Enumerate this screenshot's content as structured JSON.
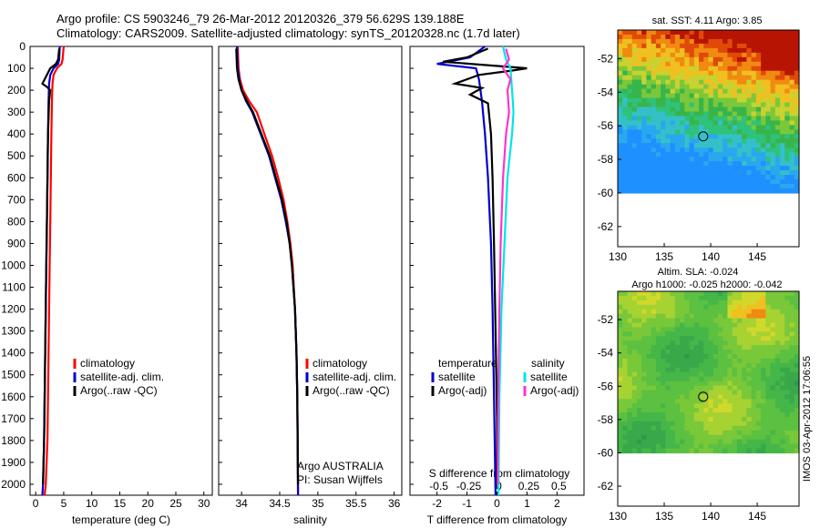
{
  "header": {
    "line1": "Argo profile: CS 5903246_79 26-Mar-2012 20120326_379 56.629S 139.188E",
    "line2": "Climatology: CARS2009. Satellite-adjusted climatology: synTS_20120328.nc (1.7d later)"
  },
  "colors": {
    "clim": "#ff0000",
    "sat": "#0000cc",
    "argo": "#000000",
    "cyan": "#00e5e5",
    "magenta": "#ff33cc"
  },
  "chart_data": [
    {
      "id": "temperature",
      "type": "line",
      "xlabel": "temperature (deg C)",
      "ylim": [
        2050,
        0
      ],
      "xlim": [
        -1,
        31.5
      ],
      "xticks": [
        0,
        5,
        10,
        15,
        20,
        25,
        30
      ],
      "yticks": [
        0,
        100,
        200,
        300,
        400,
        500,
        600,
        700,
        800,
        900,
        1000,
        1100,
        1200,
        1300,
        1400,
        1500,
        1600,
        1700,
        1800,
        1900,
        2000
      ],
      "legend": [
        "climatology",
        "satellite-adj. clim.",
        "Argo(..raw -QC)"
      ],
      "series": [
        {
          "name": "climatology",
          "color": "clim",
          "points": [
            [
              5.0,
              0
            ],
            [
              4.8,
              60
            ],
            [
              4.6,
              80
            ],
            [
              3.8,
              100
            ],
            [
              3.2,
              130
            ],
            [
              3.0,
              170
            ],
            [
              2.9,
              250
            ],
            [
              2.8,
              400
            ],
            [
              2.7,
              600
            ],
            [
              2.6,
              800
            ],
            [
              2.5,
              1000
            ],
            [
              2.4,
              1200
            ],
            [
              2.3,
              1400
            ],
            [
              2.2,
              1600
            ],
            [
              2.1,
              1800
            ],
            [
              1.8,
              2000
            ],
            [
              1.6,
              2050
            ]
          ]
        },
        {
          "name": "satellite-adj. clim.",
          "color": "sat",
          "points": [
            [
              4.3,
              0
            ],
            [
              4.2,
              60
            ],
            [
              4.0,
              80
            ],
            [
              3.2,
              100
            ],
            [
              2.6,
              130
            ],
            [
              2.4,
              170
            ],
            [
              2.3,
              250
            ],
            [
              2.2,
              400
            ],
            [
              2.1,
              600
            ],
            [
              2.0,
              800
            ],
            [
              1.9,
              1000
            ],
            [
              1.8,
              1200
            ],
            [
              1.7,
              1400
            ],
            [
              1.6,
              1600
            ],
            [
              1.5,
              1800
            ],
            [
              1.3,
              2000
            ],
            [
              1.2,
              2050
            ]
          ]
        },
        {
          "name": "Argo(..raw -QC)",
          "color": "argo",
          "points": [
            [
              4.2,
              10
            ],
            [
              4.0,
              60
            ],
            [
              3.6,
              80
            ],
            [
              2.6,
              100
            ],
            [
              1.6,
              150
            ],
            [
              1.2,
              170
            ],
            [
              2.0,
              185
            ],
            [
              2.6,
              200
            ],
            [
              2.4,
              250
            ],
            [
              2.2,
              400
            ],
            [
              2.1,
              600
            ],
            [
              2.0,
              800
            ],
            [
              1.9,
              1000
            ],
            [
              1.8,
              1200
            ],
            [
              1.7,
              1400
            ],
            [
              1.6,
              1600
            ],
            [
              1.5,
              1800
            ],
            [
              1.3,
              2000
            ]
          ]
        }
      ]
    },
    {
      "id": "salinity",
      "type": "line",
      "xlabel": "salinity",
      "ylim": [
        2050,
        0
      ],
      "xlim": [
        33.7,
        36.1
      ],
      "xticks": [
        34,
        34.5,
        35,
        35.5,
        36
      ],
      "xtick_labels": [
        "34",
        "34.5",
        "35",
        "35.5",
        "36"
      ],
      "legend": [
        "climatology",
        "satellite-adj. clim.",
        "Argo(..raw -QC)"
      ],
      "annotation": [
        "Argo AUSTRALIA",
        "PI: Susan Wijffels"
      ],
      "series": [
        {
          "name": "climatology",
          "color": "clim",
          "points": [
            [
              33.95,
              0
            ],
            [
              33.96,
              100
            ],
            [
              33.98,
              150
            ],
            [
              34.02,
              200
            ],
            [
              34.1,
              250
            ],
            [
              34.2,
              300
            ],
            [
              34.3,
              400
            ],
            [
              34.4,
              500
            ],
            [
              34.48,
              600
            ],
            [
              34.55,
              700
            ],
            [
              34.6,
              800
            ],
            [
              34.64,
              900
            ],
            [
              34.67,
              1000
            ],
            [
              34.7,
              1200
            ],
            [
              34.72,
              1400
            ],
            [
              34.73,
              1600
            ],
            [
              34.74,
              2050
            ]
          ]
        },
        {
          "name": "satellite-adj. clim.",
          "color": "sat",
          "points": [
            [
              33.94,
              0
            ],
            [
              33.95,
              100
            ],
            [
              33.97,
              150
            ],
            [
              34.0,
              200
            ],
            [
              34.06,
              250
            ],
            [
              34.14,
              300
            ],
            [
              34.25,
              400
            ],
            [
              34.36,
              500
            ],
            [
              34.44,
              600
            ],
            [
              34.52,
              700
            ],
            [
              34.58,
              800
            ],
            [
              34.63,
              900
            ],
            [
              34.66,
              1000
            ],
            [
              34.7,
              1200
            ],
            [
              34.72,
              1400
            ],
            [
              34.73,
              1600
            ],
            [
              34.74,
              2050
            ]
          ]
        },
        {
          "name": "Argo(..raw -QC)",
          "color": "argo",
          "points": [
            [
              33.93,
              10
            ],
            [
              33.94,
              100
            ],
            [
              33.96,
              150
            ],
            [
              34.0,
              200
            ],
            [
              34.07,
              250
            ],
            [
              34.15,
              300
            ],
            [
              34.26,
              400
            ],
            [
              34.37,
              500
            ],
            [
              34.45,
              600
            ],
            [
              34.53,
              700
            ],
            [
              34.59,
              800
            ],
            [
              34.63,
              900
            ],
            [
              34.66,
              1000
            ],
            [
              34.7,
              1200
            ],
            [
              34.72,
              1400
            ],
            [
              34.73,
              1600
            ],
            [
              34.74,
              2000
            ]
          ]
        }
      ]
    },
    {
      "id": "differences",
      "type": "line",
      "xlabel": "T difference from climatology",
      "xlabel2": "S difference from climatology",
      "ylim": [
        2050,
        0
      ],
      "xlim": [
        -2.9,
        2.9
      ],
      "xticks": [
        -2,
        -1,
        0,
        1,
        2
      ],
      "xticks2": [
        -0.5,
        -0.25,
        0,
        0.25,
        0.5
      ],
      "xticks2_labels": [
        "-0.5",
        "-0.25",
        "0",
        "0.25",
        "0.5"
      ],
      "legend_left_title": "temperature",
      "legend_right_title": "salinity",
      "legend_left": [
        "satellite",
        "Argo(-adj)"
      ],
      "legend_right": [
        "satellite",
        "Argo(-adj)"
      ],
      "series": [
        {
          "name": "temperature satellite",
          "color": "sat",
          "points": [
            [
              -0.4,
              0
            ],
            [
              -0.9,
              50
            ],
            [
              -2.0,
              80
            ],
            [
              -0.7,
              100
            ],
            [
              -0.6,
              150
            ],
            [
              -0.5,
              250
            ],
            [
              -0.4,
              400
            ],
            [
              -0.3,
              600
            ],
            [
              -0.2,
              900
            ],
            [
              -0.15,
              1200
            ],
            [
              -0.1,
              1600
            ],
            [
              -0.05,
              2050
            ]
          ]
        },
        {
          "name": "temperature Argo(-adj)",
          "color": "argo",
          "points": [
            [
              -0.3,
              10
            ],
            [
              -1.0,
              50
            ],
            [
              -1.8,
              70
            ],
            [
              1.0,
              100
            ],
            [
              0.5,
              110
            ],
            [
              -0.6,
              130
            ],
            [
              -1.4,
              170
            ],
            [
              -0.5,
              190
            ],
            [
              -0.9,
              220
            ],
            [
              -0.3,
              260
            ],
            [
              -0.2,
              400
            ],
            [
              -0.15,
              600
            ],
            [
              -0.1,
              900
            ],
            [
              -0.05,
              1300
            ],
            [
              0,
              1700
            ],
            [
              0,
              2000
            ]
          ]
        },
        {
          "name": "salinity satellite",
          "color": "cyan",
          "points": [
            [
              0.2,
              0
            ],
            [
              0.3,
              60
            ],
            [
              0.45,
              100
            ],
            [
              0.5,
              200
            ],
            [
              0.55,
              300
            ],
            [
              0.5,
              400
            ],
            [
              0.35,
              600
            ],
            [
              0.25,
              900
            ],
            [
              0.15,
              1200
            ],
            [
              0.08,
              1600
            ],
            [
              0.05,
              2050
            ]
          ]
        },
        {
          "name": "salinity Argo(-adj)",
          "color": "magenta",
          "points": [
            [
              0.3,
              10
            ],
            [
              0.4,
              60
            ],
            [
              0.2,
              100
            ],
            [
              0.45,
              150
            ],
            [
              0.35,
              200
            ],
            [
              0.4,
              300
            ],
            [
              0.3,
              400
            ],
            [
              0.2,
              600
            ],
            [
              0.12,
              900
            ],
            [
              0.08,
              1200
            ],
            [
              0.04,
              1600
            ],
            [
              0.02,
              2000
            ]
          ]
        }
      ]
    },
    {
      "id": "sst-map",
      "type": "heatmap",
      "title": "sat. SST: 4.11  Argo: 3.85",
      "xticks": [
        130,
        135,
        140,
        145
      ],
      "yticks": [
        -52,
        -54,
        -56,
        -58,
        -60,
        -62
      ],
      "xlim": [
        130,
        149.5
      ],
      "ylim": [
        -63.2,
        -50.3
      ],
      "data_lat_min": -60,
      "argo_position": [
        139.19,
        -56.63
      ]
    },
    {
      "id": "sla-map",
      "type": "heatmap",
      "title": "Altim. SLA: -0.024",
      "subtitle": "Argo h1000: -0.025 h2000: -0.042",
      "xticks": [
        130,
        135,
        140,
        145
      ],
      "yticks": [
        -52,
        -54,
        -56,
        -58,
        -60,
        -62
      ],
      "xlim": [
        130,
        149.5
      ],
      "ylim": [
        -63.2,
        -50.3
      ],
      "data_lat_min": -60,
      "argo_position": [
        139.19,
        -56.63
      ]
    }
  ],
  "footer": {
    "stamp": "IMOS 03-Apr-2012 17:06:55"
  }
}
